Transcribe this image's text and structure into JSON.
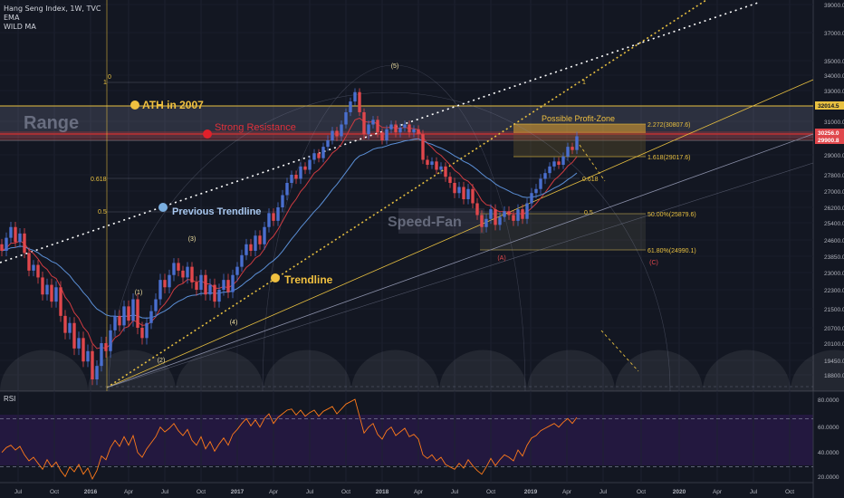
{
  "header": {
    "symbol": "Hang Seng Index, 1W, TVC",
    "indicator_1": "EMA",
    "indicator_2": "WILD MA"
  },
  "colors": {
    "background": "#131722",
    "up_candle": "#4a6fcf",
    "down_candle": "#e0474c",
    "ema": "#cf3b41",
    "wild_ma": "#5b8fd6",
    "fan_line": "#e8c040",
    "resistance": "#d23030",
    "ath_line": "#e8c040",
    "rsi_line": "#ff7a1a",
    "rsi_band": "#2a1a4a"
  },
  "chart_data": [
    {
      "type": "candlestick",
      "title": "Hang Seng Index, 1W, TVC",
      "x_tick_labels": [
        "Jul",
        "Oct",
        "2016",
        "Apr",
        "Jul",
        "Oct",
        "2017",
        "Apr",
        "Jul",
        "Oct",
        "2018",
        "Apr",
        "Jul",
        "Oct",
        "2019",
        "Apr",
        "Jul",
        "Oct",
        "2020",
        "Apr",
        "Jul",
        "Oct"
      ],
      "y_tick_labels": [
        "39000.0",
        "37000.0",
        "35000.0",
        "34000.0",
        "33000.0",
        "32014.5",
        "31000.0",
        "30256.0",
        "29900.8",
        "29000.0",
        "27800.0",
        "27000.0",
        "26200.0",
        "25400.0",
        "24600.0",
        "23850.0",
        "23000.0",
        "22300.0",
        "21500.0",
        "20700.0",
        "20100.0",
        "19450.0",
        "18800.0"
      ],
      "ylim": [
        18400,
        39000
      ],
      "price_labels": {
        "ath": "32014.5",
        "last": "30256.0",
        "resistance": "29900.8"
      },
      "weekly_close_series": [
        24100,
        24700,
        25200,
        24500,
        24900,
        24000,
        23100,
        23400,
        22800,
        22100,
        22500,
        21800,
        22400,
        21200,
        20500,
        20900,
        19900,
        20300,
        19400,
        19800,
        18600,
        19200,
        20100,
        19800,
        20600,
        21200,
        20800,
        21600,
        21000,
        21900,
        20700,
        20300,
        20900,
        21400,
        21900,
        22700,
        22400,
        22900,
        23500,
        23100,
        22800,
        23300,
        22600,
        22300,
        22900,
        22100,
        22500,
        21800,
        22300,
        22700,
        22200,
        22900,
        23300,
        23900,
        24400,
        24100,
        24800,
        24400,
        25200,
        25900,
        25500,
        26200,
        26800,
        27400,
        27800,
        27600,
        28300,
        28100,
        28700,
        29100,
        28800,
        29500,
        29900,
        30400,
        30100,
        30800,
        31600,
        32300,
        32900,
        31600,
        30200,
        30800,
        31100,
        30300,
        29900,
        30500,
        30800,
        30300,
        30600,
        30800,
        30300,
        30500,
        30200,
        28700,
        28400,
        28600,
        28100,
        28300,
        27700,
        27400,
        26900,
        27200,
        26600,
        27100,
        26400,
        25800,
        25200,
        25600,
        26100,
        25300,
        25700,
        26000,
        25800,
        25500,
        26100,
        25600,
        26400,
        26900,
        27100,
        27600,
        27900,
        28300,
        28600,
        28400,
        28900,
        29500,
        29300,
        30100
      ],
      "annotations": [
        "ATH in 2007",
        "Strong Resistance",
        "Range",
        "Previous Trendline",
        "Trendline",
        "Speed-Fan",
        "Possible Profit-Zone",
        "(1)",
        "(2)",
        "(3)",
        "(4)",
        "(5)",
        "(A)",
        "(C)"
      ],
      "fib_levels": [
        "2.272(30807.6)",
        "1.618(29017.6)",
        "50.00%(25879.6)",
        "61.80%(24990.1)"
      ],
      "fan_labels": [
        "0",
        "1",
        "0.618",
        "0.5",
        "1",
        "0.618",
        "0.5"
      ]
    },
    {
      "type": "line",
      "title": "RSI",
      "y_tick_labels": [
        "80.0000",
        "60.0000",
        "40.0000",
        "20.0000"
      ],
      "ylim": [
        18,
        82
      ],
      "overbought": 70,
      "oversold": 30,
      "values": [
        42,
        46,
        48,
        44,
        47,
        40,
        35,
        38,
        33,
        28,
        36,
        30,
        34,
        27,
        22,
        30,
        26,
        32,
        24,
        29,
        20,
        27,
        39,
        36,
        46,
        52,
        47,
        55,
        48,
        56,
        42,
        38,
        45,
        50,
        55,
        63,
        59,
        62,
        66,
        60,
        56,
        61,
        52,
        48,
        55,
        45,
        51,
        43,
        49,
        54,
        48,
        57,
        61,
        66,
        70,
        64,
        69,
        63,
        70,
        74,
        66,
        71,
        74,
        77,
        78,
        73,
        77,
        72,
        75,
        77,
        72,
        76,
        78,
        80,
        74,
        78,
        82,
        84,
        86,
        72,
        58,
        63,
        66,
        57,
        53,
        60,
        63,
        56,
        59,
        62,
        55,
        57,
        53,
        40,
        37,
        40,
        35,
        38,
        32,
        30,
        28,
        33,
        29,
        36,
        31,
        27,
        24,
        30,
        37,
        31,
        36,
        40,
        38,
        35,
        44,
        39,
        48,
        54,
        56,
        60,
        62,
        64,
        66,
        63,
        67,
        70,
        66,
        71
      ]
    }
  ]
}
